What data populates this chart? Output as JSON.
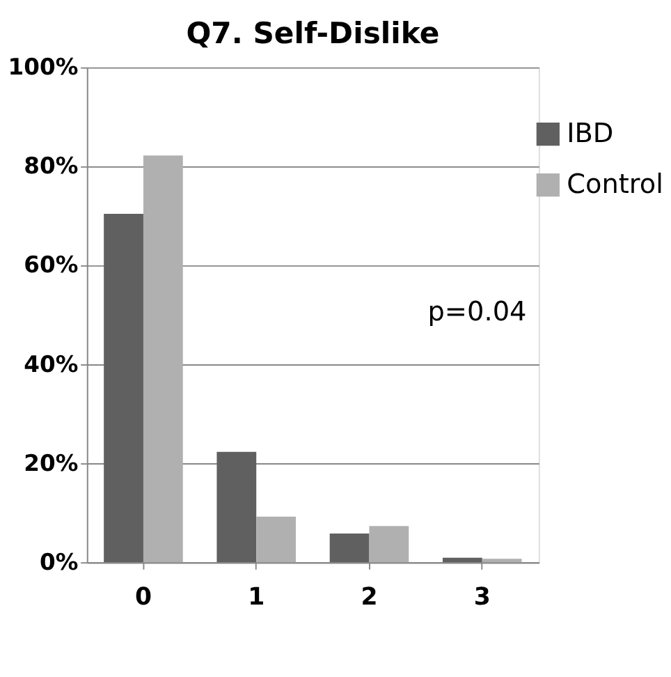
{
  "chart_data": {
    "type": "bar",
    "title": "Q7. Self-Dislike",
    "categories": [
      "0",
      "1",
      "2",
      "3"
    ],
    "series": [
      {
        "name": "IBD",
        "color": "#606060",
        "values": [
          70.4,
          22.3,
          5.8,
          0.9
        ]
      },
      {
        "name": "Control",
        "color": "#b0b0b0",
        "values": [
          82.2,
          9.2,
          7.3,
          0.7
        ]
      }
    ],
    "ylim": [
      0,
      100
    ],
    "yticks": [
      {
        "value": 0,
        "label": "0%"
      },
      {
        "value": 20,
        "label": "20%"
      },
      {
        "value": 40,
        "label": "40%"
      },
      {
        "value": 60,
        "label": "60%"
      },
      {
        "value": 80,
        "label": "80%"
      },
      {
        "value": 100,
        "label": "100%"
      }
    ],
    "grid": "y",
    "legend": "right",
    "annotations": [
      "p=0.04"
    ]
  }
}
